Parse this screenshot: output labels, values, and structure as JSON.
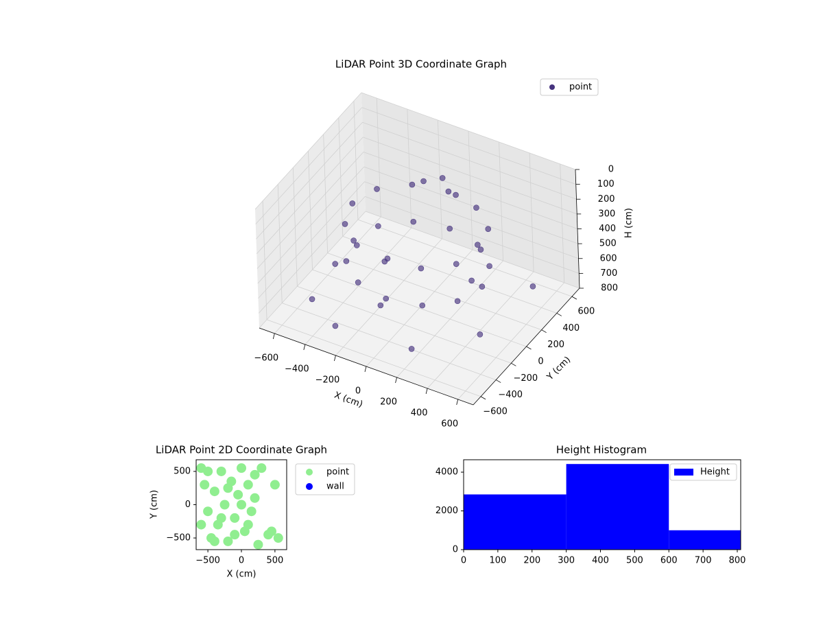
{
  "chart_data": [
    {
      "type": "scatter3d",
      "title": "LiDAR Point 3D Coordinate Graph",
      "xlabel": "X (cm)",
      "ylabel": "Y (cm)",
      "zlabel": "H (cm)",
      "xlim": [
        -700,
        700
      ],
      "ylim": [
        -700,
        700
      ],
      "zlim": [
        0,
        800
      ],
      "xticks": [
        {
          "value": -600,
          "label": "−600"
        },
        {
          "value": -400,
          "label": "−400"
        },
        {
          "value": -200,
          "label": "−200"
        },
        0,
        200,
        400,
        600
      ],
      "yticks": [
        {
          "value": -600,
          "label": "−600"
        },
        {
          "value": -400,
          "label": "−400"
        },
        {
          "value": -200,
          "label": "−200"
        },
        0,
        200,
        400,
        600
      ],
      "zticks": [
        0,
        100,
        200,
        300,
        400,
        500,
        600,
        700,
        800
      ],
      "legend": "upper right",
      "series": [
        {
          "name": "point",
          "color": "#46337e",
          "x": [
            420,
            364,
            210,
            0,
            -210,
            -364,
            -420,
            -364,
            -210,
            0,
            210,
            364,
            420,
            364,
            210,
            0,
            -210,
            -364,
            -420,
            -364,
            -210,
            0,
            210,
            364,
            -100,
            0,
            100,
            -500,
            -300,
            -100,
            200,
            500,
            600,
            -600,
            300,
            -200
          ],
          "y": [
            0,
            210,
            364,
            420,
            364,
            210,
            0,
            -210,
            -364,
            -420,
            -364,
            -210,
            0,
            210,
            364,
            420,
            364,
            210,
            0,
            -210,
            -364,
            -420,
            -364,
            -210,
            300,
            350,
            320,
            -400,
            -500,
            -300,
            -500,
            -200,
            300,
            100,
            100,
            0
          ],
          "z": [
            500,
            500,
            500,
            500,
            500,
            500,
            500,
            500,
            500,
            500,
            500,
            500,
            250,
            250,
            250,
            250,
            250,
            250,
            250,
            250,
            250,
            250,
            250,
            250,
            150,
            120,
            180,
            700,
            750,
            650,
            720,
            680,
            600,
            780,
            560,
            540
          ]
        }
      ]
    },
    {
      "type": "scatter",
      "title": "LiDAR Point 2D Coordinate Graph",
      "xlabel": "X (cm)",
      "ylabel": "Y (cm)",
      "xlim": [
        -675,
        675
      ],
      "ylim": [
        -675,
        675
      ],
      "xticks": [
        {
          "value": -500,
          "label": "−500"
        },
        0,
        500
      ],
      "yticks": [
        {
          "value": -500,
          "label": "−500"
        },
        0,
        500
      ],
      "legend": "outside right",
      "series": [
        {
          "name": "point",
          "color": "#90ee90",
          "x": [
            -600,
            -550,
            -500,
            -450,
            -400,
            -350,
            -300,
            -250,
            -200,
            -150,
            -100,
            -50,
            0,
            50,
            100,
            150,
            200,
            250,
            300,
            -600,
            -500,
            -400,
            -300,
            -200,
            -100,
            0,
            100,
            200,
            400,
            450,
            500,
            550
          ],
          "y": [
            550,
            300,
            -100,
            -500,
            200,
            -300,
            500,
            0,
            -550,
            350,
            -200,
            150,
            550,
            -400,
            300,
            -100,
            450,
            -600,
            550,
            -300,
            500,
            -550,
            -200,
            250,
            -450,
            0,
            -300,
            100,
            -450,
            -400,
            300,
            -500
          ]
        },
        {
          "name": "wall",
          "color": "#0000ff",
          "x": [],
          "y": []
        }
      ]
    },
    {
      "type": "histogram",
      "title": "Height Histogram",
      "name": "Height",
      "color": "#0000ff",
      "bins": [
        0,
        300,
        600,
        810
      ],
      "values": [
        2850,
        4420,
        1000
      ],
      "xlim": [
        0,
        810
      ],
      "ylim": [
        0,
        4640
      ],
      "xticks": [
        0,
        100,
        200,
        300,
        400,
        500,
        600,
        700,
        800
      ],
      "yticks": [
        0,
        2000,
        4000
      ],
      "legend": "upper right"
    }
  ]
}
